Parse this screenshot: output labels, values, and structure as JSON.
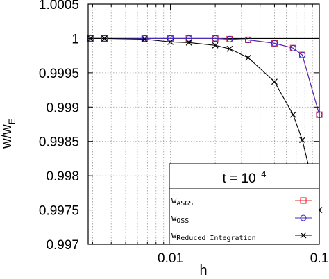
{
  "chart_data": {
    "type": "line",
    "xlabel": "h",
    "ylabel": "w/w",
    "ylabel_sub": "E",
    "xscale": "log",
    "xlim": [
      0.0028,
      0.1
    ],
    "ylim": [
      0.997,
      1.0005
    ],
    "xticks": [
      {
        "value": 0.01,
        "label": "0.01"
      },
      {
        "value": 0.1,
        "label": "0.1"
      }
    ],
    "yticks": [
      {
        "value": 0.997,
        "label": "0.997"
      },
      {
        "value": 0.9975,
        "label": "0.9975"
      },
      {
        "value": 0.998,
        "label": "0.998"
      },
      {
        "value": 0.9985,
        "label": "0.9985"
      },
      {
        "value": 0.999,
        "label": "0.999"
      },
      {
        "value": 0.9995,
        "label": "0.9995"
      },
      {
        "value": 1.0,
        "label": "1"
      },
      {
        "value": 1.0005,
        "label": "1.0005"
      }
    ],
    "grid": true,
    "legend_placement": "bottom-right",
    "legend_title": "t = 10",
    "legend_title_exp": "−4",
    "reference_line": 1.0,
    "series": [
      {
        "name": "w",
        "name_sub": "ASGS",
        "color": "#e8242b",
        "line_color": "#e8242b",
        "marker": "square",
        "x": [
          0.0029,
          0.0036,
          0.0067,
          0.01,
          0.0133,
          0.02,
          0.025,
          0.0333,
          0.05,
          0.0667,
          0.0769,
          0.1
        ],
        "y": [
          1.0,
          1.0,
          1.0,
          1.0,
          1.0,
          1.0,
          0.99999,
          0.99998,
          0.99993,
          0.99986,
          0.99976,
          0.99889
        ]
      },
      {
        "name": "w",
        "name_sub": "OSS",
        "color": "#2b2bd6",
        "line_color": "#4a2bbb",
        "marker": "circle",
        "x": [
          0.0029,
          0.0036,
          0.0067,
          0.01,
          0.0133,
          0.02,
          0.025,
          0.0333,
          0.05,
          0.0667,
          0.0769,
          0.1
        ],
        "y": [
          1.0,
          1.0,
          1.0,
          1.0,
          1.0,
          1.0,
          0.99999,
          0.99998,
          0.99993,
          0.99986,
          0.99976,
          0.99889
        ]
      },
      {
        "name": "w",
        "name_sub": "Reduced Integration",
        "color": "#000000",
        "line_color": "#000000",
        "marker": "x",
        "x": [
          0.0029,
          0.0036,
          0.0067,
          0.01,
          0.0133,
          0.02,
          0.025,
          0.0333,
          0.05,
          0.0667,
          0.0769,
          0.1
        ],
        "y": [
          1.0,
          1.0,
          0.99999,
          0.99995,
          0.99994,
          0.9999,
          0.99985,
          0.99972,
          0.99937,
          0.99889,
          0.99852,
          0.9975
        ]
      }
    ]
  }
}
